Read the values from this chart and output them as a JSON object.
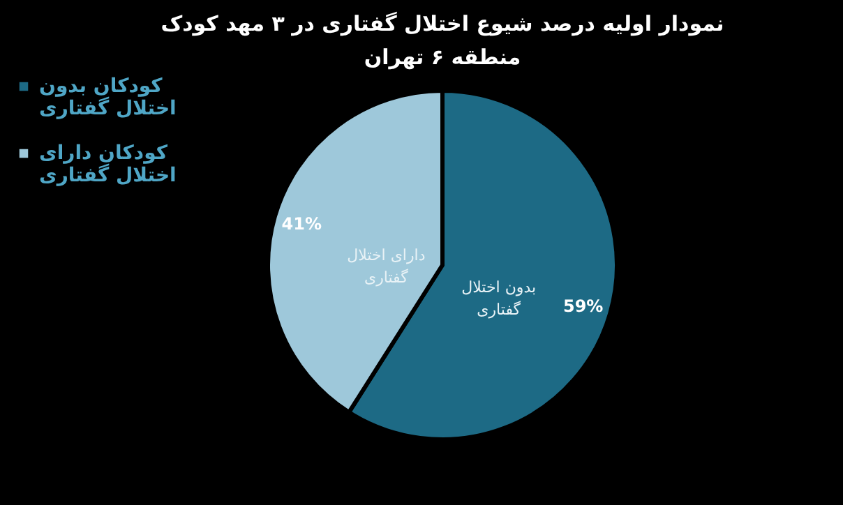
{
  "chart_data": {
    "type": "pie",
    "title": "نمودار اولیه درصد شیوع اختلال گفتاری در ۳ مهد کودک منطقه ۶ تهران",
    "categories": [
      "کودکان بدون اختلال گفتاری",
      "کودکان دارای اختلال گفتاری"
    ],
    "values": [
      59,
      41
    ],
    "colors": [
      "#1d6a85",
      "#9ec8da"
    ],
    "value_labels": [
      "59%",
      "41%"
    ],
    "annotations": [
      "بدون اختلال گفتاری",
      "دارای اختلال گفتاری"
    ],
    "legend": "left"
  }
}
